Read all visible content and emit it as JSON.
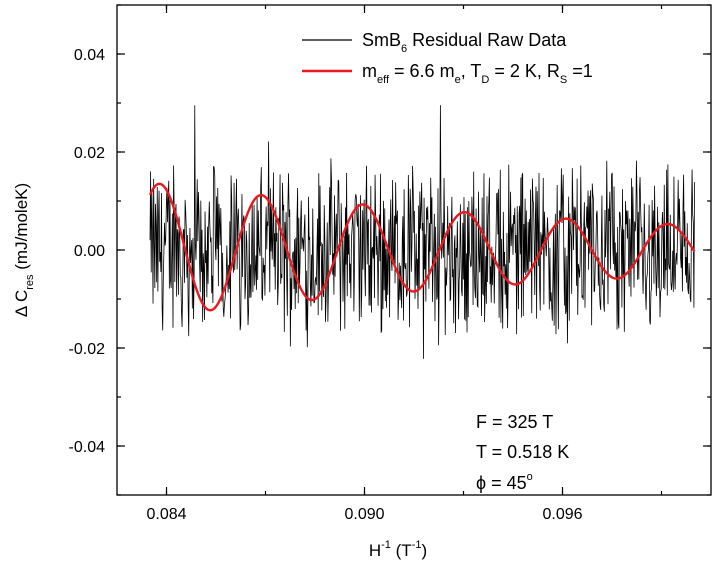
{
  "chart_data": {
    "type": "line",
    "xlabel": {
      "base": "H",
      "sup1": "-1",
      "mid": " (T",
      "sup2": "-1",
      "end": ")"
    },
    "ylabel": {
      "prefix": "Δ C",
      "sub": "res",
      "suffix": " (mJ/moleK)"
    },
    "xlim": [
      0.0825,
      0.1005
    ],
    "ylim": [
      -0.05,
      0.05
    ],
    "x_ticks": [
      0.084,
      0.09,
      0.096
    ],
    "x_tick_labels": [
      "0.084",
      "0.090",
      "0.096"
    ],
    "y_ticks": [
      -0.04,
      -0.02,
      0.0,
      0.02,
      0.04
    ],
    "y_tick_labels": [
      "-0.04",
      "-0.02",
      "0.00",
      "0.02",
      "0.04"
    ],
    "grid": false,
    "legend_position": "top-right",
    "series": [
      {
        "name": "SmB6 Residual Raw Data",
        "color": "#000000",
        "style": "noisy-line",
        "x_range": [
          0.0835,
          0.1
        ],
        "x": [
          0.0835,
          0.084,
          0.0845,
          0.085,
          0.0855,
          0.086,
          0.0865,
          0.087,
          0.0875,
          0.088,
          0.0885,
          0.089,
          0.0895,
          0.09,
          0.0905,
          0.091,
          0.0915,
          0.092,
          0.0925,
          0.093,
          0.0935,
          0.094,
          0.0945,
          0.095,
          0.0955,
          0.096,
          0.0965,
          0.097,
          0.0975,
          0.098,
          0.0985,
          0.099,
          0.0995,
          0.1
        ],
        "y": [
          0.01,
          -0.012,
          0.018,
          -0.02,
          0.014,
          -0.016,
          0.022,
          -0.018,
          0.016,
          -0.022,
          0.012,
          -0.014,
          0.02,
          -0.016,
          0.015,
          -0.012,
          0.018,
          -0.02,
          0.014,
          -0.016,
          0.017,
          -0.014,
          0.016,
          -0.018,
          0.013,
          -0.016,
          0.018,
          -0.014,
          0.015,
          -0.017,
          0.012,
          -0.014,
          0.016,
          -0.01
        ]
      },
      {
        "name_parts": [
          "m",
          "eff",
          " = 6.6 m",
          "e",
          ", T",
          "D",
          " = 2 K, R",
          "S",
          " =1"
        ],
        "color": "#e8191f",
        "style": "damped-cosine",
        "x_range": [
          0.0835,
          0.1
        ],
        "x": [
          0.0835,
          0.0838,
          0.0843,
          0.0849,
          0.0855,
          0.0868,
          0.0875,
          0.0882,
          0.0888,
          0.0895,
          0.0899,
          0.0906,
          0.0912,
          0.0919,
          0.093,
          0.0937,
          0.0943,
          0.095,
          0.0961,
          0.0968,
          0.0974,
          0.0981,
          0.0992,
          0.1
        ],
        "y": [
          0.0095,
          0.013,
          0.008,
          -0.012,
          -0.006,
          0.0108,
          0.006,
          -0.009,
          -0.0098,
          0.004,
          0.0088,
          0.003,
          -0.008,
          -0.003,
          0.0071,
          0.001,
          -0.006,
          -0.005,
          0.0058,
          0.001,
          -0.0048,
          -0.003,
          0.0047,
          -0.0005
        ]
      }
    ],
    "annotations": {
      "F": "F = 325 T",
      "T": "T = 0.518 K",
      "phi_prefix": "ϕ = 45",
      "phi_sup": "o"
    },
    "legend_raw": {
      "prefix": "SmB",
      "sub": "6",
      "suffix": " Residual Raw Data"
    }
  }
}
